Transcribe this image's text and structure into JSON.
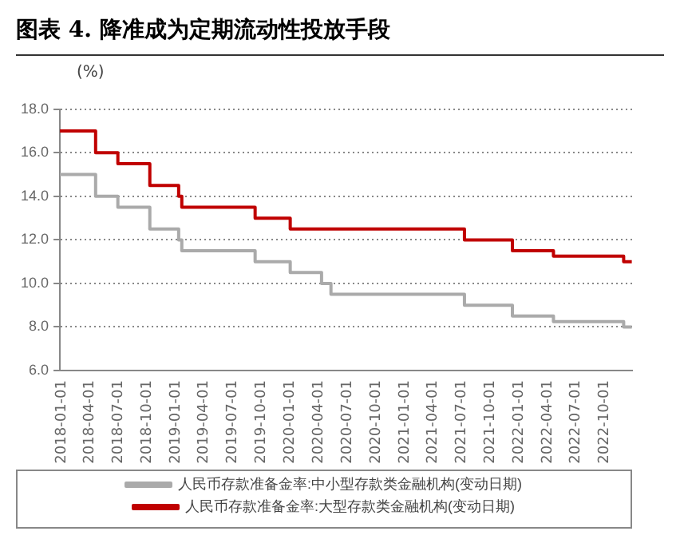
{
  "chart_data": {
    "type": "step",
    "title": "图表 4. 降准成为定期流动性投放手段",
    "ylabel": "(%)",
    "ylim": [
      6,
      18
    ],
    "yticks": [
      {
        "value": 6,
        "label": "6.0"
      },
      {
        "value": 8,
        "label": "8.0"
      },
      {
        "value": 10,
        "label": "10.0"
      },
      {
        "value": 12,
        "label": "12.0"
      },
      {
        "value": 14,
        "label": "14.0"
      },
      {
        "value": 16,
        "label": "16.0"
      },
      {
        "value": 18,
        "label": "18.0"
      }
    ],
    "xlim": [
      "2018-01-01",
      "2023-01-01"
    ],
    "xticks": [
      "2018-01-01",
      "2018-04-01",
      "2018-07-01",
      "2018-10-01",
      "2019-01-01",
      "2019-04-01",
      "2019-07-01",
      "2019-10-01",
      "2020-01-01",
      "2020-04-01",
      "2020-07-01",
      "2020-10-01",
      "2021-01-01",
      "2021-04-01",
      "2021-07-01",
      "2021-10-01",
      "2022-01-01",
      "2022-04-01",
      "2022-07-01",
      "2022-10-01"
    ],
    "grid": "y",
    "legend": "bottom",
    "marker": "none",
    "line_style": "solid",
    "series": [
      {
        "name": "人民币存款准备金率:中小型存款类金融机构(变动日期)",
        "color": "#aaaaaa",
        "x": [
          "2018-01-01",
          "2018-04-25",
          "2018-07-05",
          "2018-10-15",
          "2019-01-15",
          "2019-01-25",
          "2019-09-16",
          "2020-01-06",
          "2020-04-15",
          "2020-05-15",
          "2021-07-15",
          "2021-12-15",
          "2022-04-25",
          "2022-12-05",
          "2022-12-31"
        ],
        "values": [
          15,
          14,
          13.5,
          12.5,
          12,
          11.5,
          11,
          10.5,
          10,
          9.5,
          9,
          8.5,
          8.25,
          8,
          8
        ]
      },
      {
        "name": "人民币存款准备金率:大型存款类金融机构(变动日期)",
        "color": "#c00000",
        "x": [
          "2018-01-01",
          "2018-04-25",
          "2018-07-05",
          "2018-10-15",
          "2019-01-15",
          "2019-01-25",
          "2019-09-16",
          "2020-01-06",
          "2021-07-15",
          "2021-12-15",
          "2022-04-25",
          "2022-12-05",
          "2022-12-31"
        ],
        "values": [
          17,
          16,
          15.5,
          14.5,
          14,
          13.5,
          13,
          12.5,
          12,
          11.5,
          11.25,
          11,
          11
        ]
      }
    ]
  }
}
